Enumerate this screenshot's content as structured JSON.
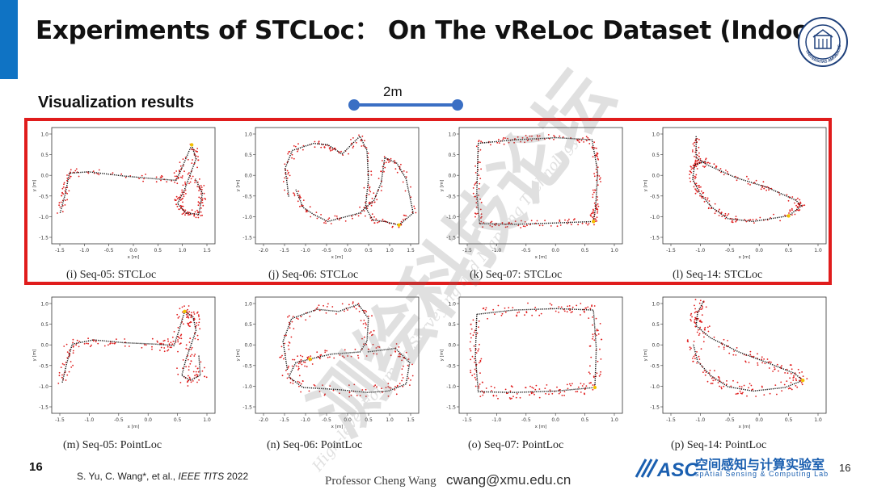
{
  "slide": {
    "title": "Experiments of STCLoc： On The vReLoc Dataset (Indoor)",
    "section_label": "Visualization results",
    "scale_bar_label": "2m",
    "page_number_left": "16",
    "page_number_right": "16",
    "citation_authors": "S. Yu, C. Wang*, et al.,",
    "citation_venue": "IEEE TITS",
    "citation_year": "2022",
    "presenter": "Professor Cheng Wang",
    "email": "cwang@xmu.edu.cn",
    "lab_name": "空间感知与计算实验室",
    "lab_subtitle": "spAtial Sensing & Computing Lab",
    "lab_logo_text": "ASC",
    "emblem_text": "UNIVERSITAS AMOIENSIS",
    "watermark_text": "测绘科技论坛",
    "watermark_subtext": "High-level Forum on Surveying and Mapping Technology",
    "colors": {
      "accent": "#0f73c4",
      "highlight": "#e01c1c",
      "points": "#e01c1c",
      "trajectory": "#111111",
      "scale": "#3a6fc4"
    }
  },
  "panels": [
    {
      "caption": "(i) Seq-05: STCLoc",
      "yticks": [
        "1.0",
        "0.5",
        "0.0",
        "-0.5",
        "-1.0",
        "-1.5"
      ],
      "xticks": [
        "-1.5",
        "-1.0",
        "-0.5",
        "0.0",
        "0.5",
        "1.0",
        "1.5"
      ],
      "xlabel": "x [m]",
      "ylabel": "y [m]"
    },
    {
      "caption": "(j) Seq-06: STCLoc",
      "yticks": [
        "1.0",
        "0.5",
        "0.0",
        "-0.5",
        "-1.0",
        "-1.5"
      ],
      "xticks": [
        "-2.0",
        "-1.5",
        "-1.0",
        "-0.5",
        "0.0",
        "0.5",
        "1.0",
        "1.5"
      ],
      "xlabel": "x [m]",
      "ylabel": "y [m]"
    },
    {
      "caption": "(k) Seq-07: STCLoc",
      "yticks": [
        "1.0",
        "0.5",
        "0.0",
        "-0.5",
        "-1.0",
        "-1.5"
      ],
      "xticks": [
        "-1.5",
        "-1.0",
        "-0.5",
        "0.0",
        "0.5",
        "1.0"
      ],
      "xlabel": "x [m]",
      "ylabel": "y [m]"
    },
    {
      "caption": "(l) Seq-14: STCLoc",
      "yticks": [
        "1.0",
        "0.5",
        "0.0",
        "-0.5",
        "-1.0",
        "-1.5"
      ],
      "xticks": [
        "-1.5",
        "-1.0",
        "-0.5",
        "0.0",
        "0.5",
        "1.0"
      ],
      "xlabel": "x [m]",
      "ylabel": "y [m]"
    },
    {
      "caption": "(m) Seq-05: PointLoc",
      "yticks": [
        "1.0",
        "0.5",
        "0.0",
        "-0.5",
        "-1.0",
        "-1.5"
      ],
      "xticks": [
        "-1.5",
        "-1.0",
        "-0.5",
        "0.0",
        "0.5",
        "1.0"
      ],
      "xlabel": "x [m]",
      "ylabel": "y [m]"
    },
    {
      "caption": "(n) Seq-06: PointLoc",
      "yticks": [
        "1.0",
        "0.5",
        "0.0",
        "-0.5",
        "-1.0",
        "-1.5"
      ],
      "xticks": [
        "-2.0",
        "-1.5",
        "-1.0",
        "-0.5",
        "0.0",
        "0.5",
        "1.0",
        "1.5"
      ],
      "xlabel": "x [m]",
      "ylabel": "y [m]"
    },
    {
      "caption": "(o) Seq-07: PointLoc",
      "yticks": [
        "1.0",
        "0.5",
        "0.0",
        "-0.5",
        "-1.0",
        "-1.5"
      ],
      "xticks": [
        "-1.5",
        "-1.0",
        "-0.5",
        "0.0",
        "0.5",
        "1.0"
      ],
      "xlabel": "x [m]",
      "ylabel": "y [m]"
    },
    {
      "caption": "(p) Seq-14: PointLoc",
      "yticks": [
        "1.0",
        "0.5",
        "0.0",
        "-0.5",
        "-1.0",
        "-1.5"
      ],
      "xticks": [
        "-1.5",
        "-1.0",
        "-0.5",
        "0.0",
        "0.5",
        "1.0"
      ],
      "xlabel": "x [m]",
      "ylabel": "y [m]"
    }
  ]
}
